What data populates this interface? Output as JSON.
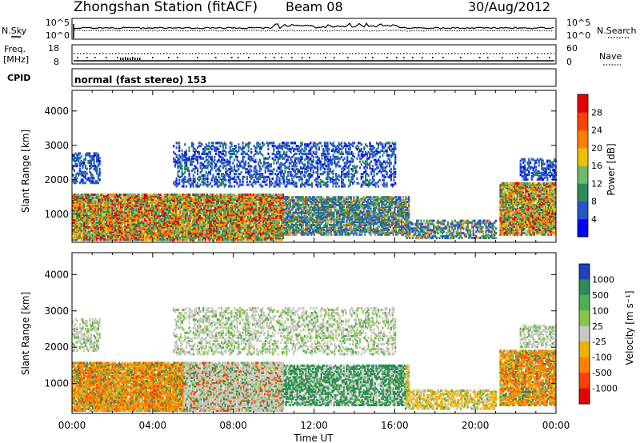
{
  "header": {
    "station": "Zhongshan Station (fitACF)",
    "beam": "Beam 08",
    "date": "30/Aug/2012"
  },
  "strip_noise": {
    "left_label": "N.Sky",
    "right_label": "N.Search",
    "left_ticks": [
      "10^5",
      "10^0"
    ],
    "right_ticks": [
      "10^5",
      "10^0"
    ]
  },
  "strip_freq": {
    "left_label_1": "Freq.",
    "left_label_2": "[MHz]",
    "right_label": "Nave",
    "left_ticks": [
      "18",
      "8"
    ],
    "right_ticks": [
      "60",
      "0"
    ]
  },
  "strip_cpid": {
    "label": "CPID",
    "value": "normal (fast stereo) 153"
  },
  "chart_data": [
    {
      "type": "heatmap",
      "name": "power",
      "ylabel": "Slant Range [km]",
      "yticks": [
        1000,
        2000,
        3000,
        4000
      ],
      "ylim": [
        180,
        4600
      ],
      "xlim": [
        0,
        24
      ],
      "colorbar_label": "Power [dB]",
      "colorbar_ticks": [
        "4",
        "8",
        "12",
        "16",
        "20",
        "24",
        "28"
      ],
      "colors": [
        "#0000ff",
        "#2855c8",
        "#2e8b57",
        "#6cba6c",
        "#f0c000",
        "#ff8000",
        "#ff4000",
        "#e60000"
      ]
    },
    {
      "type": "heatmap",
      "name": "velocity",
      "ylabel": "Slant Range [km]",
      "yticks": [
        1000,
        2000,
        3000,
        4000
      ],
      "ylim": [
        180,
        4600
      ],
      "xlim": [
        0,
        24
      ],
      "xlabel": "Time UT",
      "xticks": [
        "00:00",
        "04:00",
        "08:00",
        "12:00",
        "16:00",
        "20:00",
        "00:00"
      ],
      "colorbar_label": "Velocity [m s⁻¹]",
      "colorbar_ticks": [
        "1000",
        "500",
        "100",
        "25",
        "-25",
        "-100",
        "-500",
        "-1000"
      ],
      "colors": [
        "#2040c0",
        "#2e8b57",
        "#4caf50",
        "#8bc34a",
        "#c8c8c0",
        "#f0b000",
        "#ff8000",
        "#ff4000",
        "#e60000"
      ]
    }
  ]
}
